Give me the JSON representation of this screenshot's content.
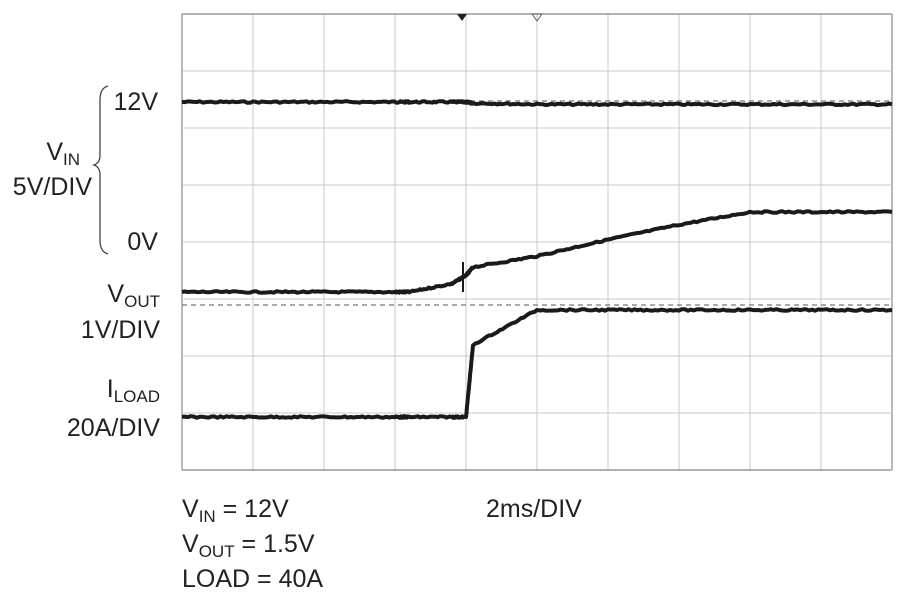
{
  "chart_data": {
    "type": "line",
    "grid": true,
    "x_divisions": 10,
    "y_divisions": 8,
    "time_scale": "2ms/DIV",
    "x": [
      0,
      1,
      2,
      3,
      3.2,
      3.8,
      4,
      4.1,
      5,
      6,
      7,
      8,
      9,
      10
    ],
    "traces": [
      {
        "name": "VIN",
        "scale": "5V/DIV",
        "ref_labels": [
          "12V",
          "0V"
        ],
        "y": [
          12,
          12,
          12,
          12,
          12,
          12,
          12,
          11.9,
          11.8,
          11.8,
          11.8,
          11.8,
          11.8,
          11.8
        ]
      },
      {
        "name": "VOUT",
        "scale": "1V/DIV",
        "y": [
          0,
          0,
          0,
          0,
          0,
          0.15,
          0.3,
          0.45,
          0.65,
          0.95,
          1.22,
          1.45,
          1.45,
          1.45
        ]
      },
      {
        "name": "ILOAD",
        "scale": "20A/DIV",
        "y": [
          0,
          0,
          0,
          0,
          0,
          0,
          0,
          27,
          40,
          40,
          40,
          40,
          40,
          40
        ]
      }
    ]
  },
  "labels": {
    "vin_ref_high": "12V",
    "vin_ref_low": "0V",
    "vin_name": "V",
    "vin_sub": "IN",
    "vin_scale": "5V/DIV",
    "vout_name": "V",
    "vout_sub": "OUT",
    "vout_scale": "1V/DIV",
    "iload_name": "I",
    "iload_sub": "LOAD",
    "iload_scale": "20A/DIV",
    "timebase": "2ms/DIV"
  },
  "conditions": {
    "vin_name": "V",
    "vin_sub": "IN",
    "vin_value": " = 12V",
    "vout_name": "V",
    "vout_sub": "OUT",
    "vout_value": " = 1.5V",
    "load_text": "LOAD = 40A"
  }
}
